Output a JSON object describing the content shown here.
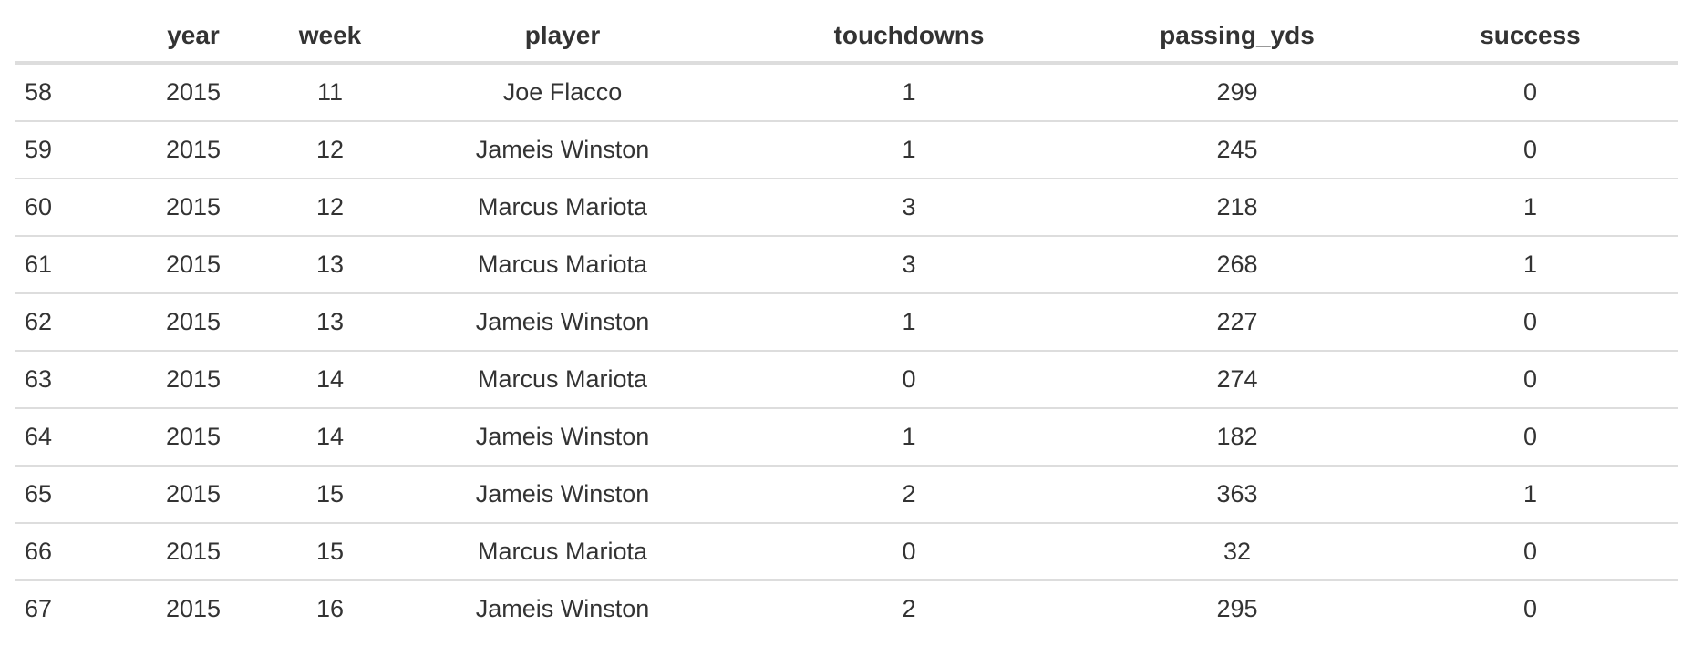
{
  "table": {
    "columns": [
      "",
      "year",
      "week",
      "player",
      "touchdowns",
      "passing_yds",
      "success"
    ],
    "rows": [
      [
        "58",
        "2015",
        "11",
        "Joe Flacco",
        "1",
        "299",
        "0"
      ],
      [
        "59",
        "2015",
        "12",
        "Jameis Winston",
        "1",
        "245",
        "0"
      ],
      [
        "60",
        "2015",
        "12",
        "Marcus Mariota",
        "3",
        "218",
        "1"
      ],
      [
        "61",
        "2015",
        "13",
        "Marcus Mariota",
        "3",
        "268",
        "1"
      ],
      [
        "62",
        "2015",
        "13",
        "Jameis Winston",
        "1",
        "227",
        "0"
      ],
      [
        "63",
        "2015",
        "14",
        "Marcus Mariota",
        "0",
        "274",
        "0"
      ],
      [
        "64",
        "2015",
        "14",
        "Jameis Winston",
        "1",
        "182",
        "0"
      ],
      [
        "65",
        "2015",
        "15",
        "Jameis Winston",
        "2",
        "363",
        "1"
      ],
      [
        "66",
        "2015",
        "15",
        "Marcus Mariota",
        "0",
        "32",
        "0"
      ],
      [
        "67",
        "2015",
        "16",
        "Jameis Winston",
        "2",
        "295",
        "0"
      ]
    ]
  }
}
